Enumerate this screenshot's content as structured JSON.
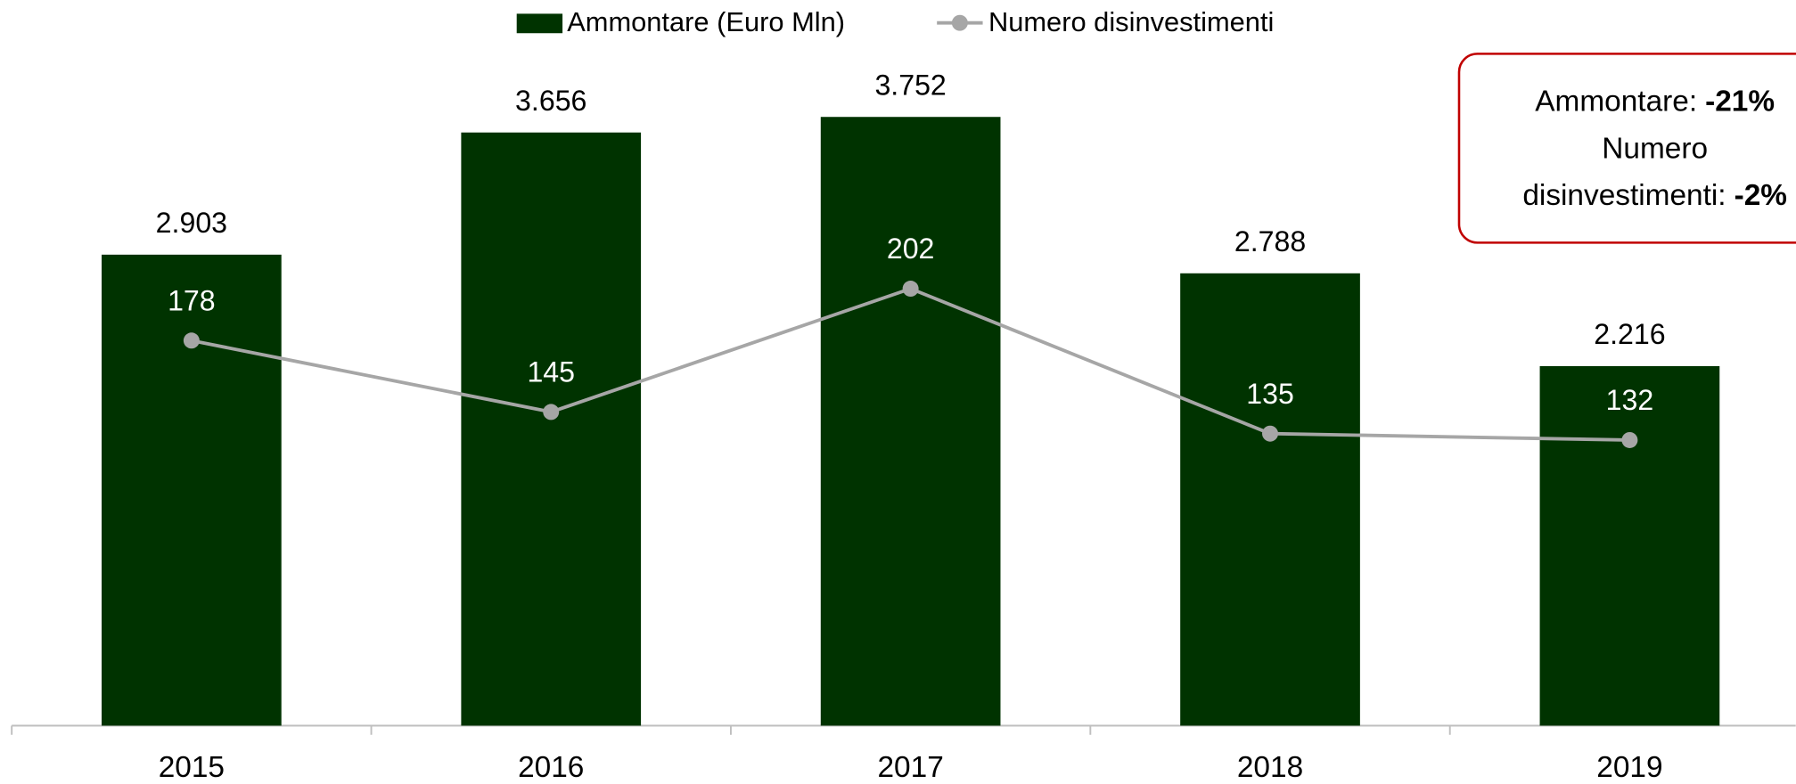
{
  "chart_data": {
    "type": "bar",
    "categories": [
      "2015",
      "2016",
      "2017",
      "2018",
      "2019"
    ],
    "series": [
      {
        "name": "Ammontare (Euro Mln)",
        "type": "bar",
        "color": "#003300",
        "values": [
          2903,
          3656,
          3752,
          2788,
          2216
        ],
        "value_labels": [
          "2.903",
          "3.656",
          "3.752",
          "2.788",
          "2.216"
        ]
      },
      {
        "name": "Numero disinvestimenti",
        "type": "line",
        "color": "#a6a6a6",
        "axis": "y2",
        "values": [
          178,
          145,
          202,
          135,
          132
        ]
      }
    ],
    "ylim": [
      0,
      4000
    ],
    "y2lim": [
      0,
      300
    ],
    "legend": "top",
    "annotation": [
      {
        "text": "Ammontare:",
        "bold": "-21%"
      },
      {
        "text": "Numero"
      },
      {
        "text": "disinvestimenti:",
        "bold": "-2%"
      }
    ]
  }
}
